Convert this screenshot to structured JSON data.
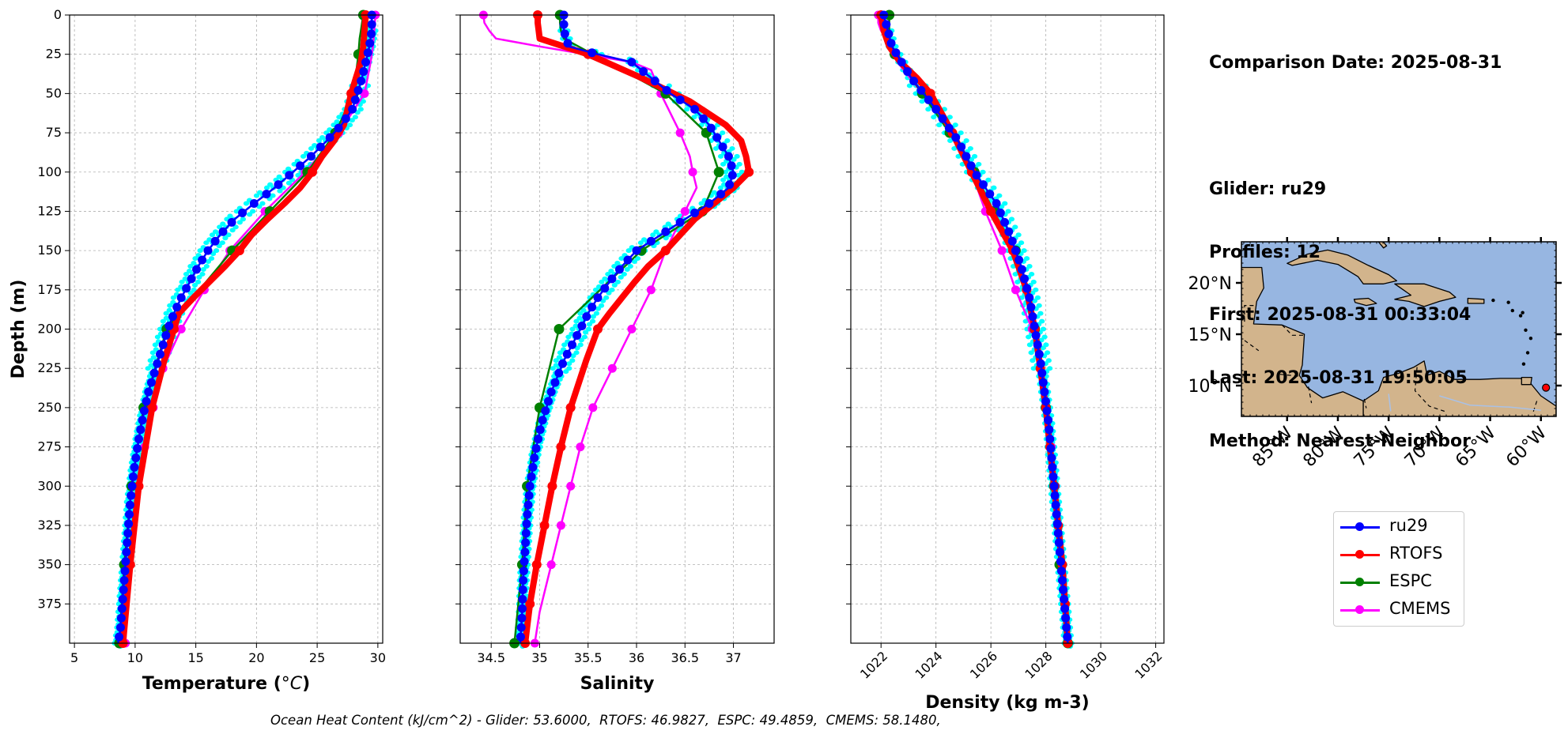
{
  "info": {
    "lines": [
      "Comparison Date: 2025-08-31",
      "",
      "Glider: ru29",
      "Profiles: 12",
      "First: 2025-08-31 00:33:04",
      "Last: 2025-08-31 19:50:05",
      "Method: Nearest-Neighbor"
    ]
  },
  "footer": "Ocean Heat Content (kJ/cm^2) - Glider: 53.6000,  RTOFS: 46.9827,  ESPC: 49.4859,  CMEMS: 58.1480,",
  "colors": {
    "ru29": "#0000ff",
    "RTOFS": "#ff0000",
    "ESPC": "#008000",
    "CMEMS": "#ff00ff",
    "ru29_raw": "#00ffff",
    "ocean": "#97b6e1",
    "land": "#d2b48c"
  },
  "legend": [
    {
      "name": "ru29",
      "color": "#0000ff"
    },
    {
      "name": "RTOFS",
      "color": "#ff0000"
    },
    {
      "name": "ESPC",
      "color": "#008000"
    },
    {
      "name": "CMEMS",
      "color": "#ff00ff"
    }
  ],
  "map": {
    "lat_ticks": [
      "10°N",
      "15°N",
      "20°N"
    ],
    "lon_ticks": [
      "85°W",
      "80°W",
      "75°W",
      "70°W",
      "65°W",
      "60°W"
    ],
    "glider_marker": {
      "lon": -59.5,
      "lat": 9.8
    }
  },
  "chart_data": [
    {
      "type": "line",
      "xlabel": "Temperature (°C)",
      "ylabel": "Depth (m)",
      "xlim": [
        4.6,
        30.4
      ],
      "ylim": [
        400,
        0
      ],
      "xticks": [
        5,
        10,
        15,
        20,
        25,
        30
      ],
      "yticks": [
        0,
        25,
        50,
        75,
        100,
        125,
        150,
        175,
        200,
        225,
        250,
        275,
        300,
        325,
        350,
        375
      ],
      "grid": true,
      "series": [
        {
          "name": "ru29",
          "depth": [
            0,
            10,
            20,
            30,
            40,
            50,
            60,
            70,
            80,
            90,
            100,
            110,
            120,
            130,
            140,
            150,
            160,
            170,
            180,
            190,
            200,
            210,
            220,
            230,
            240,
            250,
            270,
            290,
            310,
            330,
            350,
            370,
            390,
            400
          ],
          "values": [
            29.5,
            29.5,
            29.3,
            29.0,
            28.7,
            28.3,
            27.9,
            27.0,
            25.8,
            24.5,
            23.0,
            21.5,
            19.8,
            18.2,
            17.0,
            16.0,
            15.2,
            14.5,
            13.8,
            13.2,
            12.7,
            12.3,
            11.9,
            11.5,
            11.1,
            10.8,
            10.3,
            9.9,
            9.6,
            9.4,
            9.2,
            9.0,
            8.8,
            8.6
          ]
        },
        {
          "name": "RTOFS",
          "depth": [
            0,
            10,
            20,
            30,
            40,
            50,
            60,
            70,
            80,
            90,
            100,
            110,
            120,
            130,
            140,
            150,
            160,
            170,
            180,
            190,
            200,
            220,
            250,
            300,
            350,
            400
          ],
          "values": [
            29.0,
            28.9,
            28.8,
            28.6,
            28.2,
            27.8,
            27.5,
            27.2,
            26.4,
            25.4,
            24.6,
            23.6,
            22.3,
            20.9,
            19.6,
            18.6,
            17.4,
            16.1,
            14.8,
            13.6,
            13.2,
            12.4,
            11.4,
            10.3,
            9.6,
            9.0
          ]
        },
        {
          "name": "ESPC",
          "depth": [
            0,
            5,
            10,
            15,
            25,
            50,
            75,
            100,
            125,
            150,
            200,
            250,
            300,
            350,
            400
          ],
          "values": [
            28.8,
            28.7,
            28.6,
            28.5,
            28.4,
            28.0,
            26.5,
            24.2,
            21.1,
            18.0,
            12.6,
            10.7,
            9.7,
            9.1,
            8.7
          ]
        },
        {
          "name": "CMEMS",
          "depth": [
            0,
            10,
            20,
            30,
            50,
            75,
            100,
            125,
            150,
            175,
            200,
            225,
            250,
            275,
            300,
            320,
            340,
            360,
            380,
            400
          ],
          "values": [
            29.8,
            29.7,
            29.6,
            29.4,
            28.9,
            26.8,
            24.0,
            20.7,
            17.8,
            15.7,
            13.8,
            12.3,
            11.5,
            10.8,
            10.3,
            9.9,
            9.7,
            9.5,
            9.3,
            9.2
          ]
        }
      ]
    },
    {
      "type": "line",
      "xlabel": "Salinity",
      "xlim": [
        34.18,
        37.42
      ],
      "ylim": [
        400,
        0
      ],
      "xticks": [
        34.5,
        35.0,
        35.5,
        36.0,
        36.5,
        37.0
      ],
      "grid": true,
      "series": [
        {
          "name": "ru29",
          "depth": [
            0,
            10,
            20,
            25,
            30,
            40,
            50,
            60,
            70,
            80,
            90,
            100,
            110,
            120,
            130,
            140,
            150,
            160,
            170,
            180,
            190,
            200,
            220,
            240,
            260,
            280,
            300,
            320,
            340,
            360,
            380,
            400
          ],
          "values": [
            35.25,
            35.25,
            35.3,
            35.6,
            35.95,
            36.15,
            36.35,
            36.6,
            36.75,
            36.85,
            36.95,
            37.0,
            36.95,
            36.75,
            36.5,
            36.25,
            36.0,
            35.85,
            35.72,
            35.6,
            35.5,
            35.42,
            35.25,
            35.12,
            35.02,
            34.95,
            34.9,
            34.87,
            34.85,
            34.83,
            34.82,
            34.8
          ]
        },
        {
          "name": "RTOFS",
          "depth": [
            0,
            5,
            10,
            15,
            25,
            40,
            55,
            70,
            80,
            90,
            100,
            110,
            120,
            130,
            140,
            150,
            160,
            170,
            180,
            190,
            200,
            220,
            250,
            275,
            300,
            325,
            350,
            375,
            400
          ],
          "values": [
            34.98,
            34.98,
            34.99,
            35.0,
            35.5,
            36.05,
            36.55,
            36.92,
            37.08,
            37.13,
            37.16,
            37.0,
            36.8,
            36.6,
            36.45,
            36.3,
            36.12,
            35.98,
            35.85,
            35.72,
            35.6,
            35.48,
            35.32,
            35.22,
            35.13,
            35.05,
            34.97,
            34.9,
            34.85
          ]
        },
        {
          "name": "ESPC",
          "depth": [
            0,
            5,
            10,
            15,
            25,
            50,
            75,
            100,
            125,
            150,
            200,
            250,
            300,
            350,
            400
          ],
          "values": [
            35.21,
            35.21,
            35.22,
            35.25,
            35.55,
            36.3,
            36.72,
            36.85,
            36.68,
            36.05,
            35.2,
            35.0,
            34.87,
            34.82,
            34.74
          ]
        },
        {
          "name": "CMEMS",
          "depth": [
            0,
            5,
            10,
            15,
            20,
            30,
            35,
            50,
            75,
            90,
            100,
            110,
            125,
            150,
            175,
            200,
            225,
            250,
            275,
            300,
            325,
            350,
            380,
            400
          ],
          "values": [
            34.42,
            34.43,
            34.48,
            34.55,
            35.0,
            35.95,
            36.15,
            36.25,
            36.45,
            36.55,
            36.58,
            36.62,
            36.5,
            36.3,
            36.15,
            35.95,
            35.75,
            35.55,
            35.42,
            35.32,
            35.22,
            35.12,
            35.0,
            34.95
          ]
        }
      ]
    },
    {
      "type": "line",
      "xlabel": "Density (kg m-3)",
      "xlim": [
        1020.9,
        1032.3
      ],
      "ylim": [
        400,
        0
      ],
      "xticks": [
        1022,
        1024,
        1026,
        1028,
        1030,
        1032
      ],
      "grid": true,
      "series": [
        {
          "name": "ru29",
          "depth": [
            0,
            20,
            40,
            60,
            80,
            100,
            120,
            140,
            160,
            180,
            200,
            220,
            240,
            260,
            280,
            300,
            320,
            340,
            360,
            380,
            400
          ],
          "values": [
            1022.1,
            1022.4,
            1023.1,
            1024.0,
            1024.8,
            1025.4,
            1026.2,
            1026.7,
            1027.1,
            1027.4,
            1027.6,
            1027.8,
            1027.95,
            1028.1,
            1028.2,
            1028.3,
            1028.4,
            1028.5,
            1028.6,
            1028.7,
            1028.8
          ]
        },
        {
          "name": "RTOFS",
          "depth": [
            0,
            10,
            20,
            30,
            40,
            50,
            75,
            100,
            125,
            150,
            175,
            200,
            225,
            250,
            275,
            300,
            325,
            350,
            375,
            400
          ],
          "values": [
            1022.0,
            1022.1,
            1022.3,
            1022.7,
            1023.3,
            1023.8,
            1024.6,
            1025.3,
            1026.0,
            1026.8,
            1027.3,
            1027.6,
            1027.8,
            1028.0,
            1028.15,
            1028.3,
            1028.45,
            1028.6,
            1028.7,
            1028.8
          ]
        },
        {
          "name": "ESPC",
          "depth": [
            0,
            5,
            10,
            15,
            25,
            50,
            75,
            100,
            125,
            150,
            200,
            250,
            300,
            350,
            400
          ],
          "values": [
            1022.3,
            1022.3,
            1022.3,
            1022.3,
            1022.5,
            1023.5,
            1024.5,
            1025.4,
            1026.1,
            1026.9,
            1027.6,
            1028.0,
            1028.3,
            1028.5,
            1028.8
          ]
        },
        {
          "name": "CMEMS",
          "depth": [
            0,
            5,
            10,
            15,
            20,
            30,
            50,
            75,
            100,
            125,
            150,
            175,
            200,
            225,
            250,
            275,
            300,
            325,
            350,
            375,
            400
          ],
          "values": [
            1021.9,
            1021.9,
            1022.0,
            1022.2,
            1022.3,
            1022.6,
            1023.5,
            1024.6,
            1025.3,
            1025.8,
            1026.4,
            1026.9,
            1027.5,
            1027.8,
            1028.0,
            1028.2,
            1028.35,
            1028.45,
            1028.55,
            1028.7,
            1028.8
          ]
        }
      ]
    }
  ]
}
